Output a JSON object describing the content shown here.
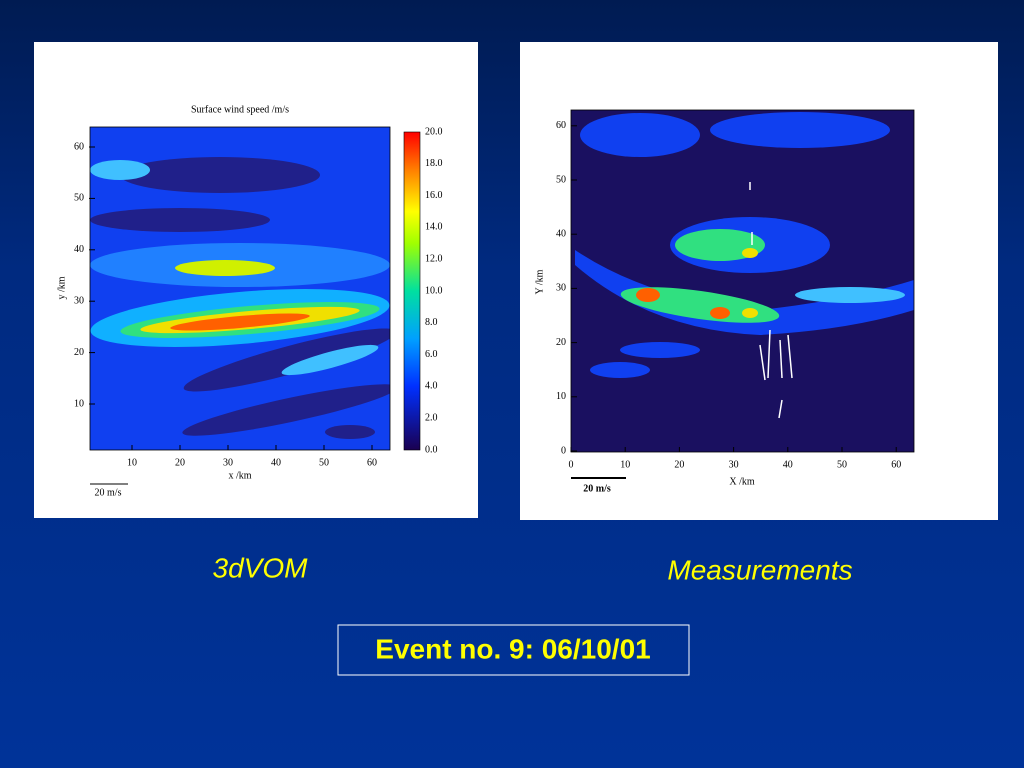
{
  "panels": [
    {
      "title": "Surface wind speed /m/s",
      "xlabel": "x /km",
      "ylabel": "y /km",
      "xticks": [
        "10",
        "20",
        "30",
        "40",
        "50",
        "60"
      ],
      "yticks": [
        "10",
        "20",
        "30",
        "40",
        "50",
        "60"
      ],
      "colorbar": [
        "20.0",
        "18.0",
        "16.0",
        "14.0",
        "12.0",
        "10.0",
        "8.0",
        "6.0",
        "4.0",
        "2.0",
        "0.0"
      ],
      "scale": "20 m/s",
      "caption": "3dVOM"
    },
    {
      "xlabel": "X /km",
      "ylabel": "Y /km",
      "xticks": [
        "0",
        "10",
        "20",
        "30",
        "40",
        "50",
        "60"
      ],
      "yticks": [
        "0",
        "10",
        "20",
        "30",
        "40",
        "50",
        "60"
      ],
      "scale": "20 m/s",
      "caption": "Measurements"
    }
  ],
  "footer": "Event no. 9: 06/10/01"
}
